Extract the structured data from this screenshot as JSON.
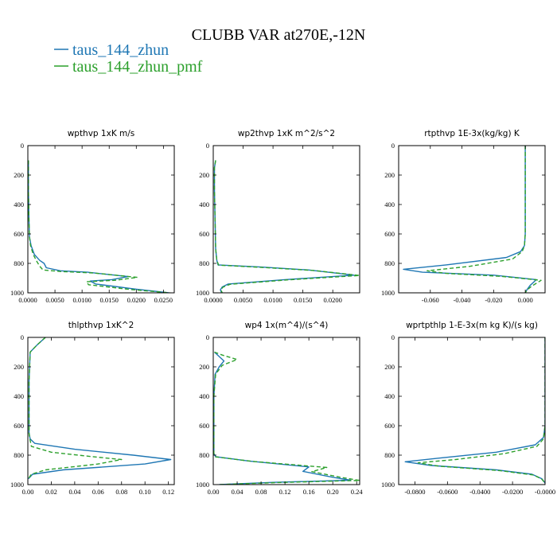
{
  "figure": {
    "title": "CLUBB VAR at270E,-12N",
    "legend": [
      {
        "label": "taus_144_zhun",
        "color": "#1f77b4",
        "dash": "solid"
      },
      {
        "label": "taus_144_zhun_pmf",
        "color": "#2ca02c",
        "dash": "dashed"
      }
    ]
  },
  "chart_data": [
    {
      "type": "line",
      "title": "wpthvp  1xK m/s",
      "xlim": [
        0,
        0.027
      ],
      "ylim": [
        1000,
        0
      ],
      "xticks": [
        0,
        0.005,
        0.01,
        0.015,
        0.02,
        0.025
      ],
      "xtick_labels": [
        "0.0000",
        "0.0050",
        "0.0100",
        "0.0150",
        "0.0200",
        "0.0250"
      ],
      "yticks": [
        0,
        200,
        400,
        600,
        800,
        1000
      ],
      "ytick_labels": [
        "0",
        "200",
        "400",
        "600",
        "800",
        "1000"
      ],
      "series": [
        {
          "name": "taus_144_zhun",
          "color": "#1f77b4",
          "dash": "solid",
          "x": [
            0.0001,
            0.0001,
            0.0002,
            0.0003,
            0.0006,
            0.0012,
            0.0022,
            0.003,
            0.0034,
            0.006,
            0.011,
            0.0185,
            0.0155,
            0.0115,
            0.0125,
            0.02,
            0.026
          ],
          "y": [
            100,
            300,
            500,
            620,
            680,
            740,
            780,
            800,
            830,
            850,
            860,
            890,
            910,
            920,
            940,
            975,
            1000
          ]
        },
        {
          "name": "taus_144_zhun_pmf",
          "color": "#2ca02c",
          "dash": "dashed",
          "x": [
            0.0001,
            0.0001,
            0.0002,
            0.0003,
            0.0005,
            0.001,
            0.0017,
            0.0022,
            0.0028,
            0.006,
            0.012,
            0.0202,
            0.016,
            0.0108,
            0.0112,
            0.019,
            0.0262
          ],
          "y": [
            100,
            300,
            500,
            620,
            680,
            740,
            790,
            820,
            845,
            855,
            865,
            895,
            915,
            925,
            945,
            978,
            1000
          ]
        }
      ]
    },
    {
      "type": "line",
      "title": "wp2thvp  1xK m^2/s^2",
      "xlim": [
        0,
        0.0245
      ],
      "ylim": [
        1000,
        0
      ],
      "xticks": [
        0,
        0.005,
        0.01,
        0.015,
        0.02
      ],
      "xtick_labels": [
        "0.0000",
        "0.0050",
        "0.0100",
        "0.0150",
        "0.0200"
      ],
      "yticks": [
        0,
        200,
        400,
        600,
        800,
        1000
      ],
      "ytick_labels": [
        "0",
        "200",
        "400",
        "600",
        "800",
        "1000"
      ],
      "series": [
        {
          "name": "taus_144_zhun",
          "color": "#1f77b4",
          "dash": "solid",
          "x": [
            0.0004,
            0.0002,
            0.0002,
            0.0003,
            0.0004,
            0.0006,
            0.0008,
            0.008,
            0.016,
            0.0236,
            0.012,
            0.0025,
            0.0015,
            0.0012,
            0.0014
          ],
          "y": [
            100,
            150,
            300,
            500,
            700,
            780,
            810,
            825,
            845,
            880,
            910,
            940,
            960,
            980,
            1000
          ]
        },
        {
          "name": "taus_144_zhun_pmf",
          "color": "#2ca02c",
          "dash": "dashed",
          "x": [
            0.0004,
            0.0002,
            0.0002,
            0.0003,
            0.0004,
            0.0006,
            0.0009,
            0.0085,
            0.0168,
            0.0245,
            0.0125,
            0.0028,
            0.0016,
            0.0013,
            0.0015
          ],
          "y": [
            100,
            150,
            300,
            500,
            700,
            780,
            812,
            828,
            848,
            882,
            912,
            942,
            962,
            982,
            1000
          ]
        }
      ]
    },
    {
      "type": "line",
      "title": "rtpthvp  1E-3x(kg/kg) K",
      "xlim": [
        -0.08,
        0.0125
      ],
      "ylim": [
        1000,
        0
      ],
      "xticks": [
        -0.06,
        -0.04,
        -0.02,
        0
      ],
      "xtick_labels": [
        "-0.060",
        "-0.040",
        "-0.020",
        "0.000"
      ],
      "yticks": [
        0,
        200,
        400,
        600,
        800,
        1000
      ],
      "ytick_labels": [
        "0",
        "200",
        "400",
        "600",
        "800",
        "1000"
      ],
      "series": [
        {
          "name": "taus_144_zhun",
          "color": "#1f77b4",
          "dash": "solid",
          "x": [
            0,
            0,
            0,
            -0.0005,
            -0.003,
            -0.012,
            -0.05,
            -0.077,
            -0.065,
            -0.02,
            0.007,
            0.003,
            0.001,
            0
          ],
          "y": [
            0,
            300,
            600,
            680,
            720,
            760,
            810,
            840,
            860,
            880,
            910,
            950,
            980,
            1000
          ]
        },
        {
          "name": "taus_144_zhun_pmf",
          "color": "#2ca02c",
          "dash": "dashed",
          "x": [
            0,
            0,
            0,
            -0.0005,
            -0.002,
            -0.008,
            -0.035,
            -0.062,
            -0.05,
            -0.015,
            0.01,
            0.004,
            0.001,
            0
          ],
          "y": [
            0,
            300,
            600,
            680,
            720,
            770,
            820,
            850,
            868,
            888,
            915,
            955,
            982,
            1000
          ]
        }
      ]
    },
    {
      "type": "line",
      "title": "thlpthvp  1xK^2",
      "xlim": [
        0,
        0.125
      ],
      "ylim": [
        1000,
        0
      ],
      "xticks": [
        0,
        0.02,
        0.04,
        0.06,
        0.08,
        0.1,
        0.12
      ],
      "xtick_labels": [
        "0.00",
        "0.02",
        "0.04",
        "0.06",
        "0.08",
        "0.10",
        "0.12"
      ],
      "yticks": [
        0,
        200,
        400,
        600,
        800,
        1000
      ],
      "ytick_labels": [
        "0",
        "200",
        "400",
        "600",
        "800",
        "1000"
      ],
      "series": [
        {
          "name": "taus_144_zhun",
          "color": "#1f77b4",
          "dash": "solid",
          "x": [
            0.015,
            0.008,
            0.002,
            0.001,
            0.001,
            0.002,
            0.006,
            0.04,
            0.09,
            0.122,
            0.1,
            0.03,
            0.004,
            0.0005
          ],
          "y": [
            0,
            50,
            100,
            300,
            650,
            690,
            720,
            760,
            800,
            830,
            860,
            900,
            930,
            960
          ]
        },
        {
          "name": "taus_144_zhun_pmf",
          "color": "#2ca02c",
          "dash": "dashed",
          "x": [
            0.015,
            0.008,
            0.002,
            0.001,
            0.001,
            0.002,
            0.003,
            0.02,
            0.055,
            0.08,
            0.06,
            0.015,
            0.003,
            0.0005
          ],
          "y": [
            0,
            50,
            100,
            300,
            650,
            700,
            740,
            780,
            810,
            830,
            860,
            900,
            930,
            960
          ]
        }
      ]
    },
    {
      "type": "line",
      "title": "wp4  1x(m^4)/(s^4)",
      "xlim": [
        0,
        0.245
      ],
      "ylim": [
        1000,
        0
      ],
      "xticks": [
        0,
        0.04,
        0.08,
        0.12,
        0.16,
        0.2,
        0.24
      ],
      "xtick_labels": [
        "0.00",
        "0.04",
        "0.08",
        "0.12",
        "0.16",
        "0.20",
        "0.24"
      ],
      "yticks": [
        0,
        200,
        400,
        600,
        800,
        1000
      ],
      "ytick_labels": [
        "0",
        "200",
        "400",
        "600",
        "800",
        "1000"
      ],
      "series": [
        {
          "name": "taus_144_zhun",
          "color": "#1f77b4",
          "dash": "solid",
          "x": [
            0.002,
            0.01,
            0.018,
            0.01,
            0.003,
            0.001,
            0.001,
            0.004,
            0.06,
            0.16,
            0.15,
            0.2,
            0.23,
            0.1,
            0.01
          ],
          "y": [
            100,
            130,
            160,
            200,
            250,
            400,
            790,
            810,
            840,
            880,
            910,
            950,
            970,
            985,
            1000
          ]
        },
        {
          "name": "taus_144_zhun_pmf",
          "color": "#2ca02c",
          "dash": "dashed",
          "x": [
            0.002,
            0.015,
            0.04,
            0.015,
            0.004,
            0.001,
            0.001,
            0.004,
            0.065,
            0.19,
            0.165,
            0.215,
            0.245,
            0.11,
            0.01
          ],
          "y": [
            100,
            120,
            150,
            190,
            250,
            400,
            790,
            812,
            842,
            884,
            912,
            952,
            972,
            986,
            1000
          ]
        }
      ]
    },
    {
      "type": "line",
      "title": "wprtpthlp  1-E-3x(m kg K)/(s kg)",
      "xlim": [
        -0.09,
        0
      ],
      "ylim": [
        1000,
        0
      ],
      "xticks": [
        -0.08,
        -0.06,
        -0.04,
        -0.02,
        0
      ],
      "xtick_labels": [
        "-0.0800",
        "-0.0600",
        "-0.0400",
        "-0.0200",
        "-0.0000"
      ],
      "yticks": [
        0,
        200,
        400,
        600,
        800,
        1000
      ],
      "ytick_labels": [
        "0",
        "200",
        "400",
        "600",
        "800",
        "1000"
      ],
      "series": [
        {
          "name": "taus_144_zhun",
          "color": "#1f77b4",
          "dash": "solid",
          "x": [
            0,
            0,
            -0.001,
            -0.006,
            -0.03,
            -0.065,
            -0.086,
            -0.07,
            -0.03,
            -0.008,
            -0.002,
            0
          ],
          "y": [
            0,
            600,
            680,
            730,
            780,
            820,
            845,
            870,
            900,
            930,
            960,
            990
          ]
        },
        {
          "name": "taus_144_zhun_pmf",
          "color": "#2ca02c",
          "dash": "dashed",
          "x": [
            0,
            0,
            -0.001,
            -0.005,
            -0.025,
            -0.055,
            -0.078,
            -0.065,
            -0.028,
            -0.007,
            -0.002,
            0
          ],
          "y": [
            0,
            600,
            690,
            740,
            790,
            830,
            852,
            875,
            905,
            935,
            963,
            990
          ]
        }
      ]
    }
  ]
}
